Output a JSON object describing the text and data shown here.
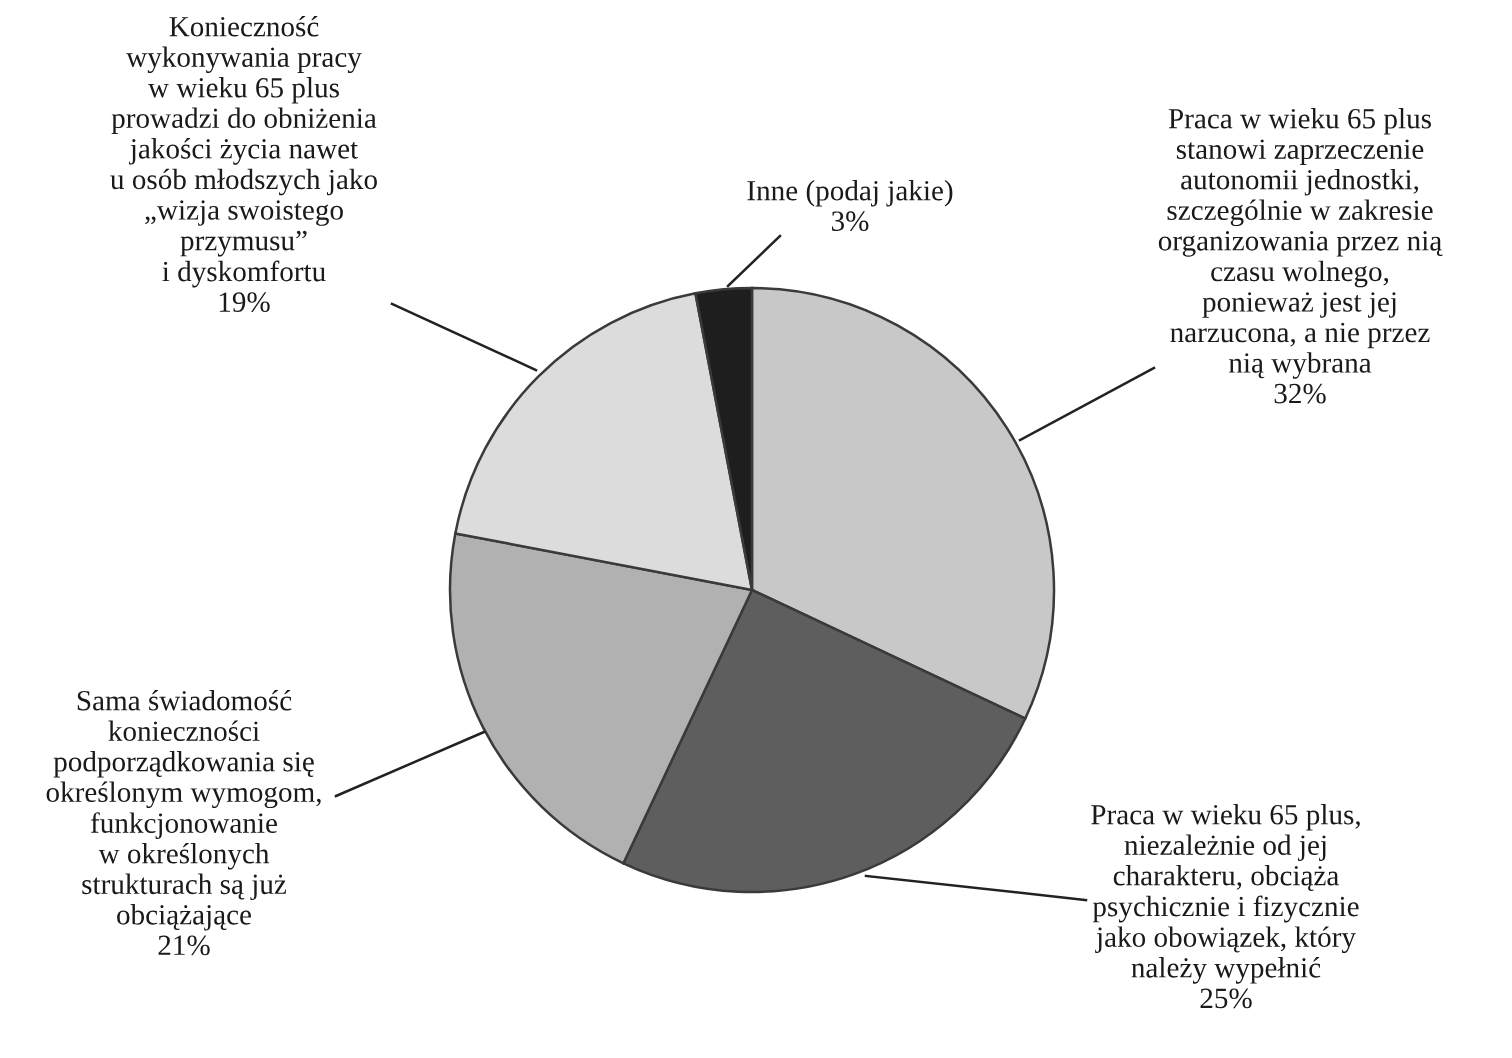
{
  "chart_data": {
    "type": "pie",
    "categories": [
      "Praca w wieku 65 plus\nstanowi zaprzeczenie\nautonomii jednostki,\nszczególnie w zakresie\norganizowania przez nią\nczasu wolnego,\nponieważ jest jej\nnarzucona, a nie przez\nnią wybrana",
      "Praca w wieku 65 plus,\nniezależnie od jej\ncharakteru, obciąża\npsychicznie i fizycznie\njako obowiązek, który\nnależy wypełnić",
      "Sama świadomość\nkonieczności\npodporządkowania się\nokreślonym wymogom,\nfunkcjonowanie\nw określonych\nstrukturach są już\nobciążające",
      "Konieczność\nwykonywania pracy\nw wieku 65 plus\nprowadzi do obniżenia\njakości życia nawet\nu osób młodszych jako\n„wizja swoistego\nprzymusu”\ni dyskomfortu",
      "Inne (podaj jakie)"
    ],
    "values": [
      32,
      25,
      21,
      19,
      3
    ],
    "value_labels": [
      "32%",
      "25%",
      "21%",
      "19%",
      "3%"
    ],
    "colors": [
      "#c8c8c8",
      "#5e5e5e",
      "#b1b1b1",
      "#dcdcdc",
      "#1e1e1e"
    ]
  }
}
